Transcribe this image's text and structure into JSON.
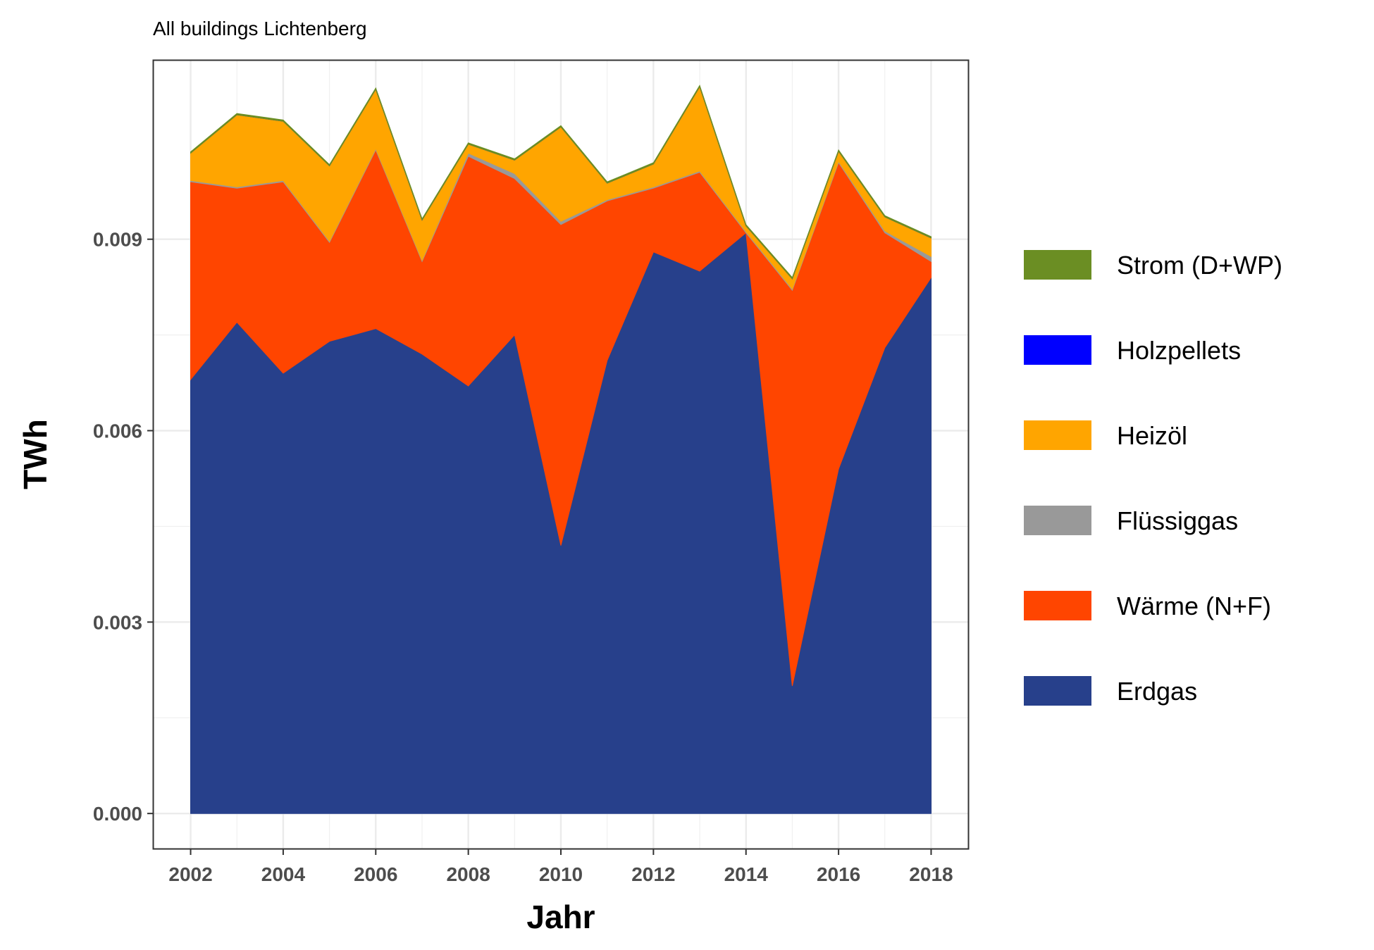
{
  "chart_data": {
    "type": "area",
    "stacked": true,
    "title": "All buildings Lichtenberg",
    "xlabel": "Jahr",
    "ylabel": "TWh",
    "x": [
      2002,
      2003,
      2004,
      2005,
      2006,
      2007,
      2008,
      2009,
      2010,
      2011,
      2012,
      2013,
      2014,
      2015,
      2016,
      2017,
      2018
    ],
    "xlim": [
      2001.2,
      2018.8
    ],
    "ylim": [
      -0.00055,
      0.0118
    ],
    "x_ticks": [
      "2002",
      "2004",
      "2006",
      "2008",
      "2010",
      "2012",
      "2014",
      "2016",
      "2018"
    ],
    "y_ticks": [
      "0.000",
      "0.003",
      "0.006",
      "0.009"
    ],
    "grid": true,
    "legend_position": "right",
    "series": [
      {
        "name": "Erdgas",
        "color": "#27408b",
        "values": [
          0.0068,
          0.0077,
          0.0069,
          0.0074,
          0.0076,
          0.0072,
          0.0067,
          0.0075,
          0.0042,
          0.0071,
          0.0088,
          0.0085,
          0.0091,
          0.002,
          0.0054,
          0.0073,
          0.0084
        ]
      },
      {
        "name": "Wärme (N+F)",
        "color": "#ff4500",
        "values": [
          0.0031,
          0.0021,
          0.003,
          0.00155,
          0.0028,
          0.00145,
          0.0036,
          0.00245,
          0.00503,
          0.0025,
          0.001,
          0.00155,
          0.0,
          0.0062,
          0.0048,
          0.0018,
          0.00025
        ]
      },
      {
        "name": "Flüssiggas",
        "color": "#999999",
        "values": [
          2e-05,
          2e-05,
          2e-05,
          2e-05,
          2e-05,
          2e-05,
          5e-05,
          8e-05,
          5e-05,
          2e-05,
          2e-05,
          2e-05,
          2e-05,
          2e-05,
          2e-05,
          3e-05,
          8e-05
        ]
      },
      {
        "name": "Heizöl",
        "color": "#ffa500",
        "values": [
          0.00043,
          0.00113,
          0.00093,
          0.00118,
          0.00093,
          0.00063,
          0.00014,
          0.00021,
          0.00148,
          0.00026,
          0.00036,
          0.00132,
          9e-05,
          0.00016,
          0.00016,
          0.00022,
          0.00029
        ]
      },
      {
        "name": "Holzpellets",
        "color": "#0000ff",
        "values": [
          0.0,
          0.0,
          0.0,
          0.0,
          0.0,
          0.0,
          0.0,
          0.0,
          0.0,
          0.0,
          0.0,
          0.0,
          0.0,
          0.0,
          0.0,
          0.0,
          0.0
        ]
      },
      {
        "name": "Strom (D+WP)",
        "color": "#6b8e23",
        "values": [
          2e-05,
          2e-05,
          2e-05,
          2e-05,
          2e-05,
          2e-05,
          2e-05,
          2e-05,
          2e-05,
          2e-05,
          2e-05,
          2e-05,
          2e-05,
          2e-05,
          2e-05,
          2e-05,
          2e-05
        ]
      }
    ],
    "legend_order": [
      "Strom (D+WP)",
      "Holzpellets",
      "Heizöl",
      "Flüssiggas",
      "Wärme (N+F)",
      "Erdgas"
    ]
  }
}
